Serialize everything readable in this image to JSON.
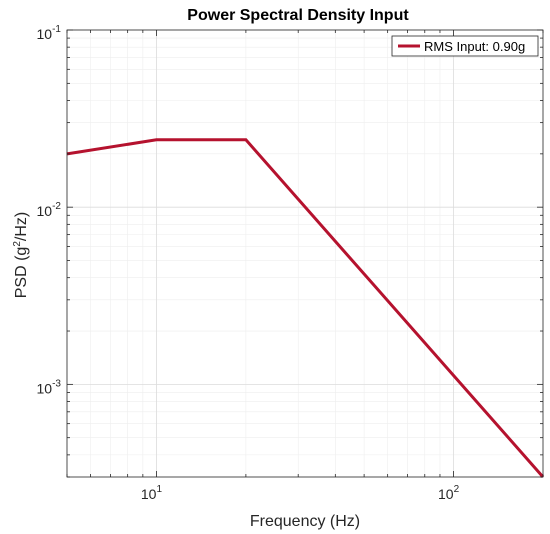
{
  "chart_data": {
    "type": "line",
    "title": "Power Spectral Density Input",
    "xlabel": "Frequency (Hz)",
    "ylabel": {
      "base": "PSD (g",
      "sup": "2",
      "tail": "/Hz)"
    },
    "x_scale": "log",
    "y_scale": "log",
    "xlim": [
      5,
      200
    ],
    "ylim": [
      0.0003,
      0.1
    ],
    "grid": true,
    "minor_grid": true,
    "legend_position": "top-right",
    "x_ticks": [
      {
        "value": 10,
        "base": "10",
        "exp": "1"
      },
      {
        "value": 100,
        "base": "10",
        "exp": "2"
      }
    ],
    "y_ticks": [
      {
        "value": 0.001,
        "base": "10",
        "exp": "-3"
      },
      {
        "value": 0.01,
        "base": "10",
        "exp": "-2"
      },
      {
        "value": 0.1,
        "base": "10",
        "exp": "-1"
      }
    ],
    "series": [
      {
        "name": "RMS Input: 0.90g",
        "color": "#B5122E",
        "x": [
          5,
          10,
          20,
          200
        ],
        "y": [
          0.02,
          0.024,
          0.024,
          0.0003
        ]
      }
    ]
  }
}
